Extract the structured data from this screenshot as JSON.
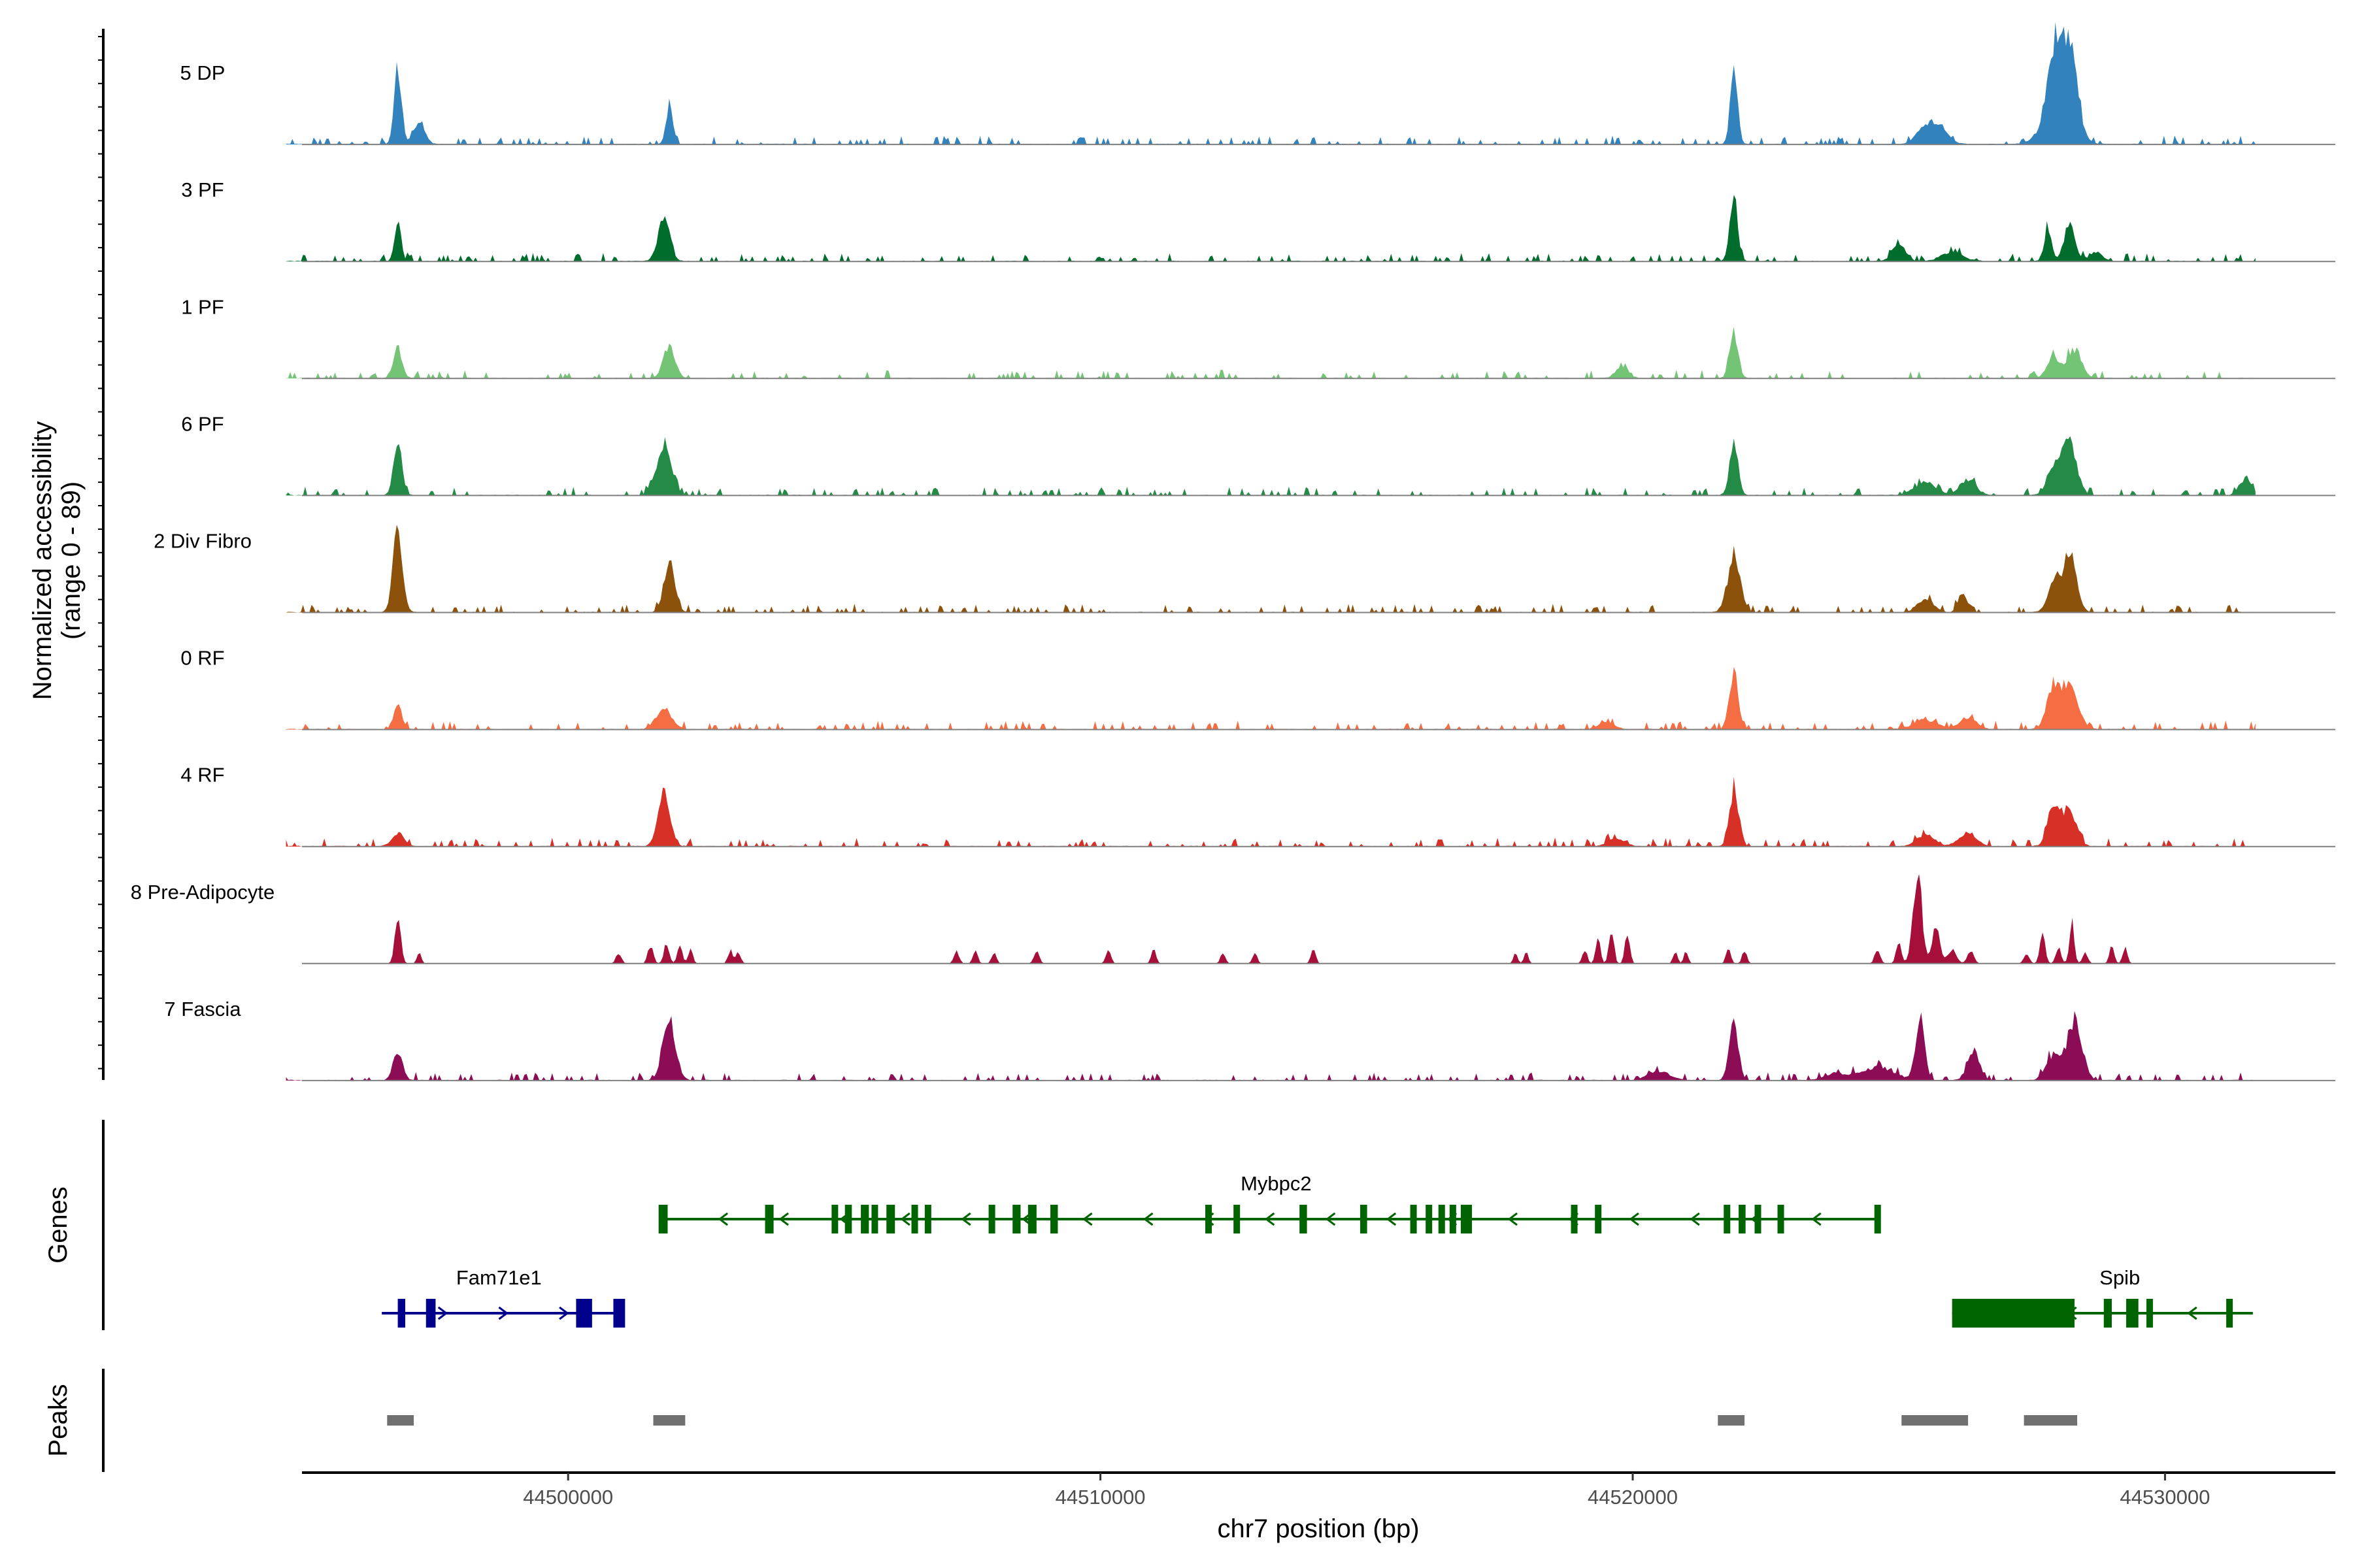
{
  "chart_data": {
    "type": "area",
    "region": {
      "chrom": "chr7",
      "start": 44494700,
      "end": 44531700
    },
    "xlim": [
      44495000,
      44533200
    ],
    "x_ticks": [
      44500000,
      44510000,
      44520000,
      44530000
    ],
    "x_tick_labels": [
      "44500000",
      "44510000",
      "44520000",
      "44530000"
    ],
    "xlabel": "chr7 position (bp)",
    "ylabel_line1": "Normalized accessibility",
    "ylabel_line2": "(range 0 - 89)",
    "ylim": [
      0,
      89
    ],
    "tracks": [
      {
        "name": "5 DP",
        "color": "#3182BD",
        "sparse": false,
        "baseline": 3,
        "peaks": [
          [
            44496800,
            58,
            70
          ],
          [
            44497200,
            14,
            110
          ],
          [
            44501900,
            30,
            60
          ],
          [
            44521900,
            52,
            70
          ],
          [
            44525500,
            14,
            160
          ],
          [
            44525800,
            12,
            150
          ],
          [
            44527900,
            42,
            120
          ],
          [
            44528200,
            58,
            140
          ],
          [
            44528000,
            30,
            260
          ]
        ]
      },
      {
        "name": "3 PF",
        "color": "#006D2C",
        "sparse": false,
        "baseline": 3,
        "peaks": [
          [
            44496800,
            32,
            60
          ],
          [
            44501800,
            32,
            110
          ],
          [
            44521900,
            44,
            75
          ],
          [
            44525000,
            14,
            120
          ],
          [
            44526000,
            7,
            200
          ],
          [
            44527800,
            24,
            70
          ],
          [
            44528200,
            28,
            100
          ],
          [
            44528700,
            7,
            120
          ]
        ]
      },
      {
        "name": "1 PF",
        "color": "#74C476",
        "sparse": false,
        "baseline": 3,
        "peaks": [
          [
            44496800,
            22,
            80
          ],
          [
            44501900,
            24,
            110
          ],
          [
            44519800,
            8,
            120
          ],
          [
            44521900,
            34,
            80
          ],
          [
            44527900,
            15,
            120
          ],
          [
            44528300,
            22,
            130
          ]
        ]
      },
      {
        "name": "6 PF",
        "color": "#238B45",
        "sparse": false,
        "baseline": 3,
        "peaks": [
          [
            44496800,
            40,
            80
          ],
          [
            44501800,
            36,
            140
          ],
          [
            44521900,
            38,
            80
          ],
          [
            44525500,
            10,
            200
          ],
          [
            44526300,
            12,
            150
          ],
          [
            44527900,
            20,
            120
          ],
          [
            44528200,
            38,
            140
          ],
          [
            44531500,
            12,
            110
          ]
        ]
      },
      {
        "name": "2 Div Fibro",
        "color": "#8C510A",
        "sparse": false,
        "baseline": 3,
        "peaks": [
          [
            44496800,
            60,
            90
          ],
          [
            44501900,
            38,
            100
          ],
          [
            44521900,
            40,
            120
          ],
          [
            44525500,
            10,
            150
          ],
          [
            44526200,
            14,
            80
          ],
          [
            44527900,
            20,
            110
          ],
          [
            44528200,
            44,
            130
          ]
        ]
      },
      {
        "name": "0 RF",
        "color": "#F46D43",
        "sparse": false,
        "baseline": 3,
        "peaks": [
          [
            44496800,
            18,
            80
          ],
          [
            44501800,
            16,
            140
          ],
          [
            44519500,
            5,
            150
          ],
          [
            44521900,
            42,
            85
          ],
          [
            44525500,
            7,
            220
          ],
          [
            44526300,
            9,
            160
          ],
          [
            44527900,
            30,
            120
          ],
          [
            44528200,
            30,
            160
          ]
        ]
      },
      {
        "name": "4 RF",
        "color": "#D73027",
        "sparse": false,
        "baseline": 3,
        "peaks": [
          [
            44496800,
            10,
            110
          ],
          [
            44501800,
            40,
            110
          ],
          [
            44519700,
            6,
            150
          ],
          [
            44521900,
            42,
            85
          ],
          [
            44525500,
            9,
            160
          ],
          [
            44526300,
            10,
            160
          ],
          [
            44527900,
            30,
            110
          ],
          [
            44528200,
            28,
            130
          ]
        ]
      },
      {
        "name": "8 Pre-Adipocyte",
        "color": "#A50F39",
        "sparse": true,
        "baseline": 0,
        "peaks": [
          [
            44496800,
            34,
            55
          ],
          [
            44497200,
            8,
            40
          ],
          [
            44500950,
            8,
            50
          ],
          [
            44501550,
            14,
            50
          ],
          [
            44501850,
            16,
            50
          ],
          [
            44502100,
            14,
            45
          ],
          [
            44502300,
            10,
            45
          ],
          [
            44503050,
            10,
            45
          ],
          [
            44503200,
            8,
            45
          ],
          [
            44507300,
            9,
            50
          ],
          [
            44507650,
            10,
            45
          ],
          [
            44508000,
            8,
            45
          ],
          [
            44508800,
            10,
            50
          ],
          [
            44510150,
            12,
            45
          ],
          [
            44511000,
            10,
            45
          ],
          [
            44512300,
            8,
            45
          ],
          [
            44512900,
            8,
            45
          ],
          [
            44514000,
            11,
            45
          ],
          [
            44517800,
            8,
            40
          ],
          [
            44518000,
            8,
            40
          ],
          [
            44519100,
            10,
            45
          ],
          [
            44519350,
            18,
            45
          ],
          [
            44519600,
            28,
            45
          ],
          [
            44519900,
            22,
            45
          ],
          [
            44520800,
            9,
            40
          ],
          [
            44521000,
            9,
            40
          ],
          [
            44521800,
            12,
            45
          ],
          [
            44522100,
            10,
            45
          ],
          [
            44524600,
            11,
            50
          ],
          [
            44525000,
            16,
            50
          ],
          [
            44525350,
            70,
            80
          ],
          [
            44525700,
            30,
            70
          ],
          [
            44526000,
            10,
            80
          ],
          [
            44526350,
            10,
            60
          ],
          [
            44527400,
            8,
            50
          ],
          [
            44527700,
            22,
            50
          ],
          [
            44528000,
            12,
            50
          ],
          [
            44528250,
            32,
            45
          ],
          [
            44528500,
            8,
            50
          ],
          [
            44529000,
            13,
            45
          ],
          [
            44529250,
            12,
            45
          ]
        ]
      },
      {
        "name": "7 Fascia",
        "color": "#8C0C56",
        "sparse": false,
        "baseline": 3,
        "peaks": [
          [
            44496800,
            22,
            90
          ],
          [
            44501900,
            44,
            120
          ],
          [
            44520500,
            7,
            200
          ],
          [
            44521900,
            42,
            85
          ],
          [
            44523800,
            5,
            200
          ],
          [
            44524600,
            10,
            300
          ],
          [
            44525400,
            46,
            85
          ],
          [
            44526400,
            22,
            110
          ],
          [
            44527900,
            18,
            140
          ],
          [
            44528300,
            44,
            140
          ]
        ]
      }
    ],
    "genes": [
      {
        "name": "Mybpc2",
        "strand": "-",
        "start": 44501780,
        "end": 44524600,
        "color": "#006400",
        "row": 1,
        "exons": [
          [
            44501700,
            44501870
          ],
          [
            44503700,
            44503860
          ],
          [
            44504950,
            44505070
          ],
          [
            44505200,
            44505330
          ],
          [
            44505500,
            44505650
          ],
          [
            44505700,
            44505800
          ],
          [
            44505980,
            44506140
          ],
          [
            44506450,
            44506570
          ],
          [
            44506700,
            44506820
          ],
          [
            44507900,
            44508020
          ],
          [
            44508350,
            44508500
          ],
          [
            44508640,
            44508800
          ],
          [
            44509060,
            44509200
          ],
          [
            44511970,
            44512030
          ],
          [
            44512500,
            44512580
          ],
          [
            44513740,
            44513880
          ],
          [
            44514880,
            44515010
          ],
          [
            44515820,
            44515940
          ],
          [
            44516110,
            44516230
          ],
          [
            44516350,
            44516450
          ],
          [
            44516560,
            44516680
          ],
          [
            44516770,
            44516980
          ],
          [
            44518840,
            44518900
          ],
          [
            44519290,
            44519340
          ],
          [
            44521710,
            44521830
          ],
          [
            44521990,
            44522120
          ],
          [
            44522290,
            44522410
          ],
          [
            44522720,
            44522820
          ],
          [
            44524540,
            44524640
          ]
        ]
      },
      {
        "name": "Fam71e1",
        "strand": "+",
        "start": 44496500,
        "end": 44501050,
        "color": "#00008B",
        "row": 2,
        "exons": [
          [
            44496800,
            44496940
          ],
          [
            44497330,
            44497510
          ],
          [
            44500150,
            44500450
          ],
          [
            44500850,
            44501070
          ]
        ]
      },
      {
        "name": "Spib",
        "strand": "-",
        "start": 44526000,
        "end": 44531650,
        "color": "#006400",
        "row": 2,
        "exons": [
          [
            44526000,
            44528300
          ],
          [
            44528850,
            44529000
          ],
          [
            44529270,
            44529500
          ],
          [
            44529650,
            44529760
          ],
          [
            44531150,
            44531200
          ]
        ]
      }
    ],
    "genes_label": "Genes",
    "peaks_label": "Peaks",
    "peak_regions": [
      [
        44496600,
        44497100
      ],
      [
        44501600,
        44502200
      ],
      [
        44521600,
        44522100
      ],
      [
        44525050,
        44526300
      ],
      [
        44527350,
        44528350
      ]
    ],
    "peak_color": "#707070"
  }
}
